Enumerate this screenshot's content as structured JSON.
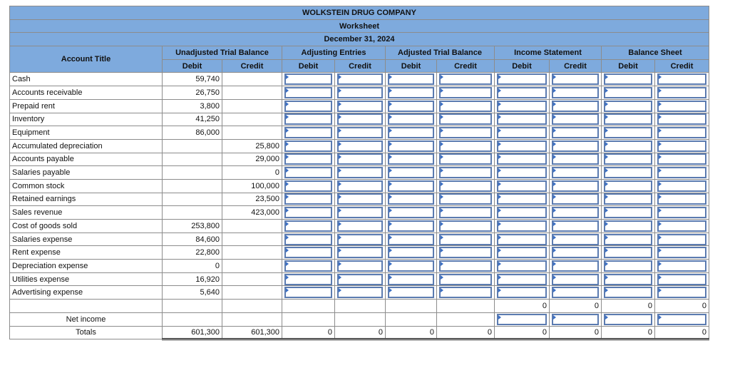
{
  "header": {
    "company": "WOLKSTEIN DRUG COMPANY",
    "title": "Worksheet",
    "date": "December 31, 2024",
    "account_title": "Account Title",
    "groups": [
      "Unadjusted Trial Balance",
      "Adjusting Entries",
      "Adjusted Trial Balance",
      "Income Statement",
      "Balance Sheet"
    ],
    "sub": [
      "Debit",
      "Credit",
      "Debit",
      "Credit",
      "Debit",
      "Credit",
      "Debit",
      "Credit",
      "Debit",
      "Credit"
    ]
  },
  "rows": [
    {
      "account": "Cash",
      "utb_debit": "59,740",
      "utb_credit": ""
    },
    {
      "account": "Accounts receivable",
      "utb_debit": "26,750",
      "utb_credit": ""
    },
    {
      "account": "Prepaid rent",
      "utb_debit": "3,800",
      "utb_credit": ""
    },
    {
      "account": "Inventory",
      "utb_debit": "41,250",
      "utb_credit": ""
    },
    {
      "account": "Equipment",
      "utb_debit": "86,000",
      "utb_credit": ""
    },
    {
      "account": "Accumulated depreciation",
      "utb_debit": "",
      "utb_credit": "25,800"
    },
    {
      "account": "Accounts payable",
      "utb_debit": "",
      "utb_credit": "29,000"
    },
    {
      "account": "Salaries payable",
      "utb_debit": "",
      "utb_credit": "0"
    },
    {
      "account": "Common stock",
      "utb_debit": "",
      "utb_credit": "100,000"
    },
    {
      "account": "Retained earnings",
      "utb_debit": "",
      "utb_credit": "23,500"
    },
    {
      "account": "Sales revenue",
      "utb_debit": "",
      "utb_credit": "423,000"
    },
    {
      "account": "Cost of goods sold",
      "utb_debit": "253,800",
      "utb_credit": ""
    },
    {
      "account": "Salaries expense",
      "utb_debit": "84,600",
      "utb_credit": ""
    },
    {
      "account": "Rent expense",
      "utb_debit": "22,800",
      "utb_credit": ""
    },
    {
      "account": "Depreciation expense",
      "utb_debit": "0",
      "utb_credit": ""
    },
    {
      "account": "Utilities expense",
      "utb_debit": "16,920",
      "utb_credit": ""
    },
    {
      "account": "Advertising expense",
      "utb_debit": "5,640",
      "utb_credit": ""
    }
  ],
  "subtotal_row": {
    "is_debit": "0",
    "is_credit": "0",
    "bs_debit": "0",
    "bs_credit": "0"
  },
  "net_income": {
    "label": "Net income"
  },
  "totals": {
    "label": "Totals",
    "utb_debit": "601,300",
    "utb_credit": "601,300",
    "ae_debit": "0",
    "ae_credit": "0",
    "atb_debit": "0",
    "atb_credit": "0",
    "is_debit": "0",
    "is_credit": "0",
    "bs_debit": "0",
    "bs_credit": "0"
  }
}
